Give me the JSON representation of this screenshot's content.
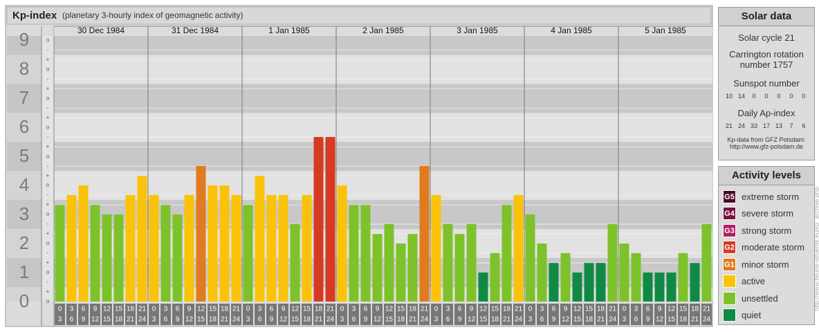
{
  "chart_data": {
    "type": "bar",
    "title": "Kp-index",
    "subtitle": "(planetary 3-hourly index of geomagnetic activity)",
    "days": [
      "30 Dec 1984",
      "31 Dec 1984",
      "1 Jan 1985",
      "2 Jan 1985",
      "3 Jan 1985",
      "4 Jan 1985",
      "5 Jan 1985"
    ],
    "hour_ranges": [
      [
        0,
        3
      ],
      [
        3,
        6
      ],
      [
        6,
        9
      ],
      [
        9,
        12
      ],
      [
        12,
        15
      ],
      [
        15,
        18
      ],
      [
        18,
        21
      ],
      [
        21,
        24
      ]
    ],
    "minor_tick_labels": [
      "-",
      "o",
      "+"
    ],
    "values": [
      3.33,
      3.67,
      4,
      3.33,
      3,
      3,
      3.67,
      4.33,
      3.67,
      3.33,
      3,
      3.67,
      4.67,
      4,
      4,
      3.67,
      3.33,
      4.33,
      3.67,
      3.67,
      2.67,
      3.67,
      5.67,
      5.67,
      4,
      3.33,
      3.33,
      2.33,
      2.67,
      2,
      2.33,
      4.67,
      3.67,
      2.67,
      2.33,
      2.67,
      1,
      1.67,
      3.33,
      3.67,
      3,
      2,
      1.33,
      1.67,
      1,
      1.33,
      1.33,
      2.67,
      2,
      1.67,
      1,
      1,
      1,
      1.67,
      1.33,
      2.67
    ],
    "colors": [
      "#7dc22a",
      "#fac30a",
      "#fac30a",
      "#7dc22a",
      "#7dc22a",
      "#7dc22a",
      "#fac30a",
      "#fac30a",
      "#fac30a",
      "#7dc22a",
      "#7dc22a",
      "#fac30a",
      "#e07b1f",
      "#fac30a",
      "#fac30a",
      "#fac30a",
      "#7dc22a",
      "#fac30a",
      "#fac30a",
      "#fac30a",
      "#7dc22a",
      "#fac30a",
      "#d63a22",
      "#d63a22",
      "#fac30a",
      "#7dc22a",
      "#7dc22a",
      "#7dc22a",
      "#7dc22a",
      "#7dc22a",
      "#7dc22a",
      "#e07b1f",
      "#fac30a",
      "#7dc22a",
      "#7dc22a",
      "#7dc22a",
      "#0f8a44",
      "#7dc22a",
      "#7dc22a",
      "#fac30a",
      "#7dc22a",
      "#7dc22a",
      "#0f8a44",
      "#7dc22a",
      "#0f8a44",
      "#0f8a44",
      "#0f8a44",
      "#7dc22a",
      "#7dc22a",
      "#7dc22a",
      "#0f8a44",
      "#0f8a44",
      "#0f8a44",
      "#7dc22a",
      "#0f8a44",
      "#7dc22a"
    ],
    "ylim": [
      0,
      9.15
    ],
    "yticks": [
      0,
      1,
      2,
      3,
      4,
      5,
      6,
      7,
      8,
      9
    ],
    "grid": true
  },
  "solar_data": {
    "title": "Solar data",
    "cycle": "Solar cycle 21",
    "carrington": "Carrington rotation number 1757",
    "sunspot_title": "Sunspot number",
    "sunspot": [
      10,
      14,
      0,
      0,
      0,
      0,
      0
    ],
    "ap_title": "Daily Ap-index",
    "ap": [
      21,
      24,
      33,
      17,
      13,
      7,
      6
    ],
    "source": "Kp-data from GFZ Potsdam:",
    "source_url": "http://www.gfz-potsdam.de"
  },
  "activity_levels": {
    "title": "Activity levels",
    "items": [
      {
        "badge": "G5",
        "name": "extreme storm",
        "color": "#4a0a2a"
      },
      {
        "badge": "G4",
        "name": "severe storm",
        "color": "#7a1040"
      },
      {
        "badge": "G3",
        "name": "strong storm",
        "color": "#b01e63"
      },
      {
        "badge": "G2",
        "name": "moderate storm",
        "color": "#d63a22"
      },
      {
        "badge": "G1",
        "name": "minor storm",
        "color": "#e07b1f"
      },
      {
        "name": "active",
        "color": "#fac30a"
      },
      {
        "name": "unsettled",
        "color": "#7dc22a"
      },
      {
        "name": "quiet",
        "color": "#0f8a44"
      }
    ]
  },
  "watermark": "http://www.fleurie-lafuente.eu/kp_archive.php"
}
